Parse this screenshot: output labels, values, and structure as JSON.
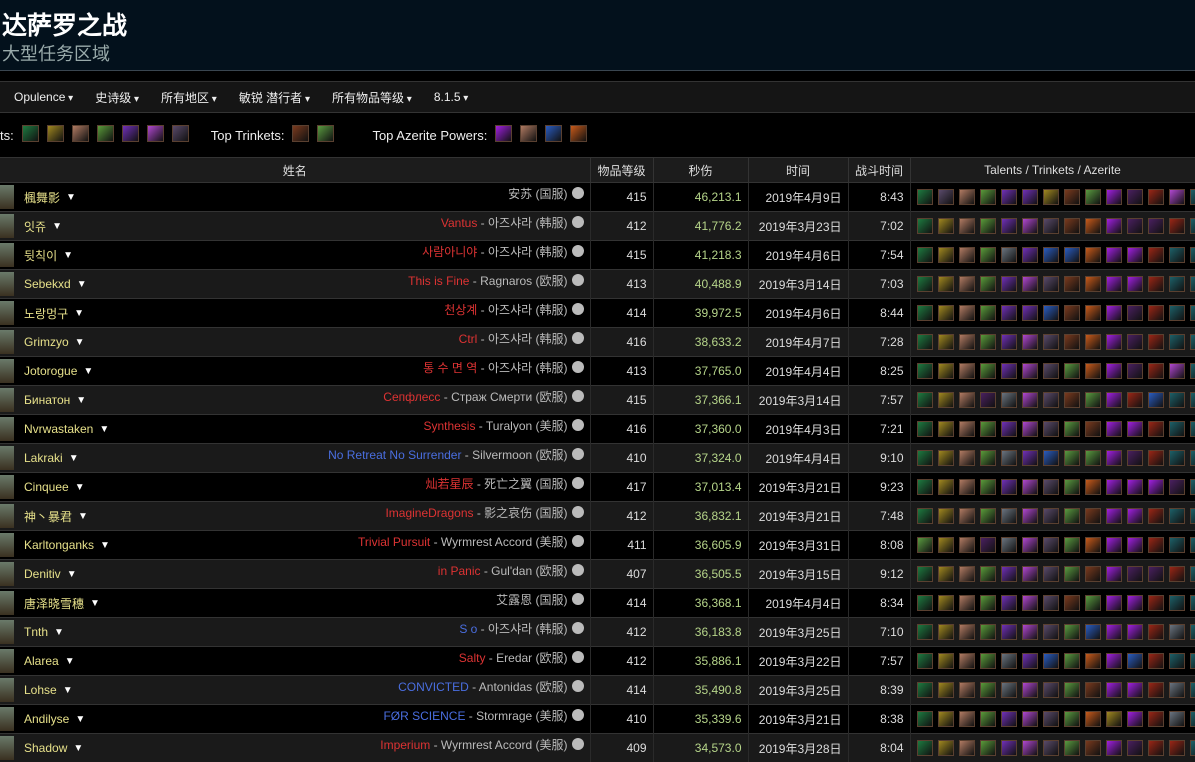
{
  "header": {
    "title": "达萨罗之战",
    "subtitle": "大型任务区域"
  },
  "filters": [
    "Opulence",
    "史诗级",
    "所有地区",
    "敏锐 潜行者",
    "所有物品等级",
    "8.1.5"
  ],
  "tops": {
    "talents_label": "ts:",
    "talents": "GYSCPWM",
    "trinkets_label": "Top Trinkets:",
    "trinkets": "BL",
    "azerite_label": "Top Azerite Powers:",
    "azerite": "RSUO"
  },
  "icon_colors": {
    "G": "#1e7a40",
    "Y": "#a08820",
    "S": "#b07a62",
    "C": "#5a9a3a",
    "P": "#7030b8",
    "W": "#b048d0",
    "M": "#5a4a6a",
    "B": "#7a3a1e",
    "O": "#c85a1a",
    "R": "#a020e0",
    "D": "#4a2060",
    "X": "#9a2616",
    "T": "#1d6068",
    "L": "#5a9a40",
    "K": "#6a7480",
    "U": "#2a5cc0"
  },
  "columns": [
    "姓名",
    "物品等级",
    "秒伤",
    "时间",
    "战斗时间",
    "Talents / Trinkets / Azerite"
  ],
  "rows": [
    {
      "name": "楓舞影",
      "guild": "",
      "realm": "安苏 (国服)",
      "gc": "red",
      "ilvl": "415",
      "dps": "46,213.1",
      "date": "2019年4月9日",
      "dur": "8:43",
      "icons": "GMSCPPYBLRDXWT"
    },
    {
      "name": "잇쥬",
      "guild": "Vantus",
      "realm": "아즈샤라 (韩服)",
      "gc": "red",
      "ilvl": "412",
      "dps": "41,776.2",
      "date": "2019年3月23日",
      "dur": "7:02",
      "icons": "GYSCPWMBORDDXT"
    },
    {
      "name": "뒷칙이",
      "guild": "사람아니야",
      "realm": "아즈샤라 (韩服)",
      "gc": "red",
      "ilvl": "415",
      "dps": "41,218.3",
      "date": "2019年4月6日",
      "dur": "7:54",
      "icons": "GYSCKPUUORRXTT"
    },
    {
      "name": "Sebekxd",
      "guild": "This is Fine",
      "realm": "Ragnaros (欧服)",
      "gc": "red",
      "ilvl": "413",
      "dps": "40,488.9",
      "date": "2019年3月14日",
      "dur": "7:03",
      "icons": "GYSCPWMBORRXTT"
    },
    {
      "name": "노랑멍구",
      "guild": "천상계",
      "realm": "아즈샤라 (韩服)",
      "gc": "red",
      "ilvl": "414",
      "dps": "39,972.5",
      "date": "2019年4月6日",
      "dur": "8:44",
      "icons": "GYSCPPUBORDXTT"
    },
    {
      "name": "Grimzyo",
      "guild": "Ctrl",
      "realm": "아즈샤라 (韩服)",
      "gc": "red",
      "ilvl": "416",
      "dps": "38,633.2",
      "date": "2019年4月7日",
      "dur": "7:28",
      "icons": "GYSCPWMBORDXTT"
    },
    {
      "name": "Jotorogue",
      "guild": "통 수 면 역",
      "realm": "아즈샤라 (韩服)",
      "gc": "red",
      "ilvl": "413",
      "dps": "37,765.0",
      "date": "2019年4月4日",
      "dur": "8:25",
      "icons": "GYSCPWMLORDXWT"
    },
    {
      "name": "Бинатон",
      "guild": "Сепфлесс",
      "realm": "Страж Смерти (欧服)",
      "gc": "red",
      "ilvl": "415",
      "dps": "37,366.1",
      "date": "2019年3月14日",
      "dur": "7:57",
      "icons": "GYSDKWMBLRXUTT"
    },
    {
      "name": "Nvrwastaken",
      "guild": "Synthesis",
      "realm": "Turalyon (美服)",
      "gc": "red",
      "ilvl": "416",
      "dps": "37,360.0",
      "date": "2019年4月3日",
      "dur": "7:21",
      "icons": "GYSCPWMLBRRXTT"
    },
    {
      "name": "Lakraki",
      "guild": "No Retreat No Surrender",
      "realm": "Silvermoon (欧服)",
      "gc": "blue",
      "ilvl": "410",
      "dps": "37,324.0",
      "date": "2019年4月4日",
      "dur": "9:10",
      "icons": "GYSCKPULLRDXTT"
    },
    {
      "name": "Cinquee",
      "guild": "灿若星辰",
      "realm": "死亡之翼 (国服)",
      "gc": "red",
      "ilvl": "417",
      "dps": "37,013.4",
      "date": "2019年3月21日",
      "dur": "9:23",
      "icons": "GYSCPWMLORRRDT"
    },
    {
      "name": "神丶暴君",
      "guild": "ImagineDragons",
      "realm": "影之哀伤 (国服)",
      "gc": "red",
      "ilvl": "412",
      "dps": "36,832.1",
      "date": "2019年3月21日",
      "dur": "7:48",
      "icons": "GYSCKWMLBRRXTT"
    },
    {
      "name": "Karltonganks",
      "guild": "Trivial Pursuit",
      "realm": "Wyrmrest Accord (美服)",
      "gc": "red",
      "ilvl": "411",
      "dps": "36,605.9",
      "date": "2019年3月31日",
      "dur": "8:08",
      "icons": "LYSDKWMLORRXTT"
    },
    {
      "name": "Denitiv",
      "guild": "in Panic",
      "realm": "Gul'dan (欧服)",
      "gc": "red",
      "ilvl": "407",
      "dps": "36,505.5",
      "date": "2019年3月15日",
      "dur": "9:12",
      "icons": "GYSCPWMLBRDDXT"
    },
    {
      "name": "唐泽晓雪穗",
      "guild": "",
      "realm": "艾露恩 (国服)",
      "gc": "red",
      "ilvl": "414",
      "dps": "36,368.1",
      "date": "2019年4月4日",
      "dur": "8:34",
      "icons": "GYSCPWMBLRRXTT"
    },
    {
      "name": "Tnth",
      "guild": "S o",
      "realm": "아즈샤라 (韩服)",
      "gc": "blue",
      "ilvl": "412",
      "dps": "36,183.8",
      "date": "2019年3月25日",
      "dur": "7:10",
      "icons": "GYSCPWMLURRXKT"
    },
    {
      "name": "Alarea",
      "guild": "Salty",
      "realm": "Eredar (欧服)",
      "gc": "red",
      "ilvl": "412",
      "dps": "35,886.1",
      "date": "2019年3月22日",
      "dur": "7:57",
      "icons": "GYSCKPULORUXTT"
    },
    {
      "name": "Lohse",
      "guild": "CONVICTED",
      "realm": "Antonidas (欧服)",
      "gc": "blue",
      "ilvl": "414",
      "dps": "35,490.8",
      "date": "2019年3月25日",
      "dur": "8:39",
      "icons": "GYSCKWMLBRRXKT"
    },
    {
      "name": "Andilyse",
      "guild": "FØR SCIENCE",
      "realm": "Stormrage (美服)",
      "gc": "blue",
      "ilvl": "410",
      "dps": "35,339.6",
      "date": "2019年3月21日",
      "dur": "8:38",
      "icons": "GYSCPWMLOYRXKT"
    },
    {
      "name": "Shadow",
      "guild": "Imperium",
      "realm": "Wyrmrest Accord (美服)",
      "gc": "red",
      "ilvl": "409",
      "dps": "34,573.0",
      "date": "2019年3月28日",
      "dur": "8:04",
      "icons": "GYSCPWMLBRDXXT"
    }
  ]
}
